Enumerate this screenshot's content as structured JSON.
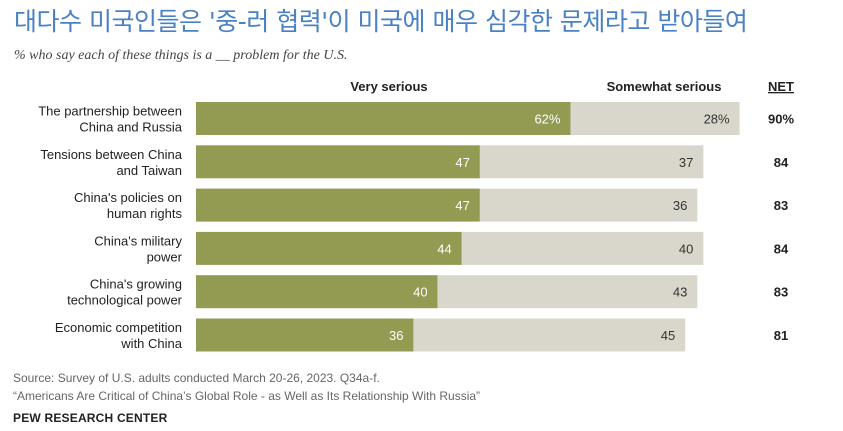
{
  "title": "대다수 미국인들은 '중-러 협력'이 미국에 매우 심각한 문제라고 받아들여",
  "subtitle": "% who say each of these things is a __ problem for the U.S.",
  "footer": {
    "source": "Source: Survey of U.S. adults conducted March 20-26, 2023. Q34a-f.",
    "report": "“Americans Are Critical of China’s Global Role - as Well as Its Relationship With Russia”",
    "brand": "PEW RESEARCH CENTER"
  },
  "colors": {
    "very_serious": "#939a52",
    "somewhat_serious": "#d9d7cb",
    "title": "#4a80c4"
  },
  "chart_data": {
    "type": "bar",
    "orientation": "horizontal",
    "stacked": true,
    "column_headers": {
      "very": "Very serious",
      "somewhat": "Somewhat serious",
      "net": "NET"
    },
    "categories": [
      "The partnership between\nChina and Russia",
      "Tensions between China\nand Taiwan",
      "China's policies on\nhuman rights",
      "China's military\npower",
      "China's growing\ntechnological power",
      "Economic competition\nwith China"
    ],
    "series": [
      {
        "name": "Very serious",
        "values": [
          62,
          47,
          47,
          44,
          40,
          36
        ],
        "labels": [
          "62%",
          "47",
          "47",
          "44",
          "40",
          "36"
        ]
      },
      {
        "name": "Somewhat serious",
        "values": [
          28,
          37,
          36,
          40,
          43,
          45
        ],
        "labels": [
          "28%",
          "37",
          "36",
          "40",
          "43",
          "45"
        ]
      }
    ],
    "net": [
      "90%",
      "84",
      "83",
      "84",
      "83",
      "81"
    ],
    "xlim": [
      0,
      100
    ],
    "grid": false,
    "legend": "top column headers"
  }
}
